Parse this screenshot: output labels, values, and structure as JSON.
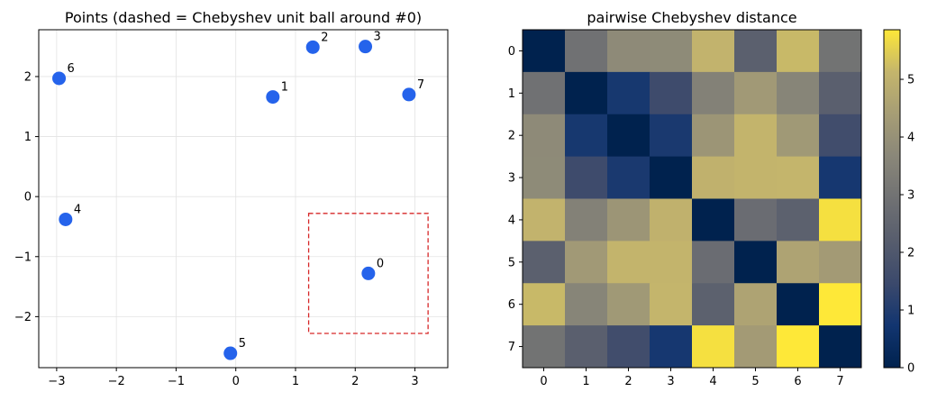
{
  "chart_data": [
    {
      "type": "scatter",
      "title": "Points (dashed = Chebyshev unit ball around #0)",
      "xlabel": "",
      "ylabel": "",
      "xlim": [
        -3.3,
        3.55
      ],
      "ylim": [
        -2.85,
        2.78
      ],
      "xticks": [
        -3,
        -2,
        -1,
        0,
        1,
        2,
        3
      ],
      "yticks": [
        -2,
        -1,
        0,
        1,
        2
      ],
      "x_tick_labels": [
        "−3",
        "−2",
        "−1",
        "0",
        "1",
        "2",
        "3"
      ],
      "y_tick_labels": [
        "−2",
        "−1",
        "0",
        "1",
        "2"
      ],
      "grid": true,
      "point_color": "#2563eb",
      "points": [
        {
          "label": "0",
          "x": 2.22,
          "y": -1.28
        },
        {
          "label": "1",
          "x": 0.62,
          "y": 1.66
        },
        {
          "label": "2",
          "x": 1.29,
          "y": 2.49
        },
        {
          "label": "3",
          "x": 2.17,
          "y": 2.5
        },
        {
          "label": "4",
          "x": -2.85,
          "y": -0.38
        },
        {
          "label": "5",
          "x": -0.09,
          "y": -2.61
        },
        {
          "label": "6",
          "x": -2.96,
          "y": 1.97
        },
        {
          "label": "7",
          "x": 2.9,
          "y": 1.7
        }
      ],
      "ball": {
        "center_index": 0,
        "radius": 1,
        "color": "#d62728",
        "style": "dashed"
      }
    },
    {
      "type": "heatmap",
      "title": "pairwise Chebyshev distance",
      "row_labels": [
        "0",
        "1",
        "2",
        "3",
        "4",
        "5",
        "6",
        "7"
      ],
      "col_labels": [
        "0",
        "1",
        "2",
        "3",
        "4",
        "5",
        "6",
        "7"
      ],
      "values": [
        [
          0.0,
          2.94,
          3.77,
          3.78,
          5.07,
          2.31,
          5.18,
          2.98
        ],
        [
          2.94,
          0.0,
          0.83,
          1.55,
          3.47,
          4.27,
          3.58,
          2.28
        ],
        [
          3.77,
          0.83,
          0.0,
          0.88,
          4.14,
          5.1,
          4.25,
          1.61
        ],
        [
          3.78,
          1.55,
          0.88,
          0.0,
          5.02,
          5.11,
          5.13,
          0.8
        ],
        [
          5.07,
          3.47,
          4.14,
          5.02,
          0.0,
          2.76,
          2.35,
          5.75
        ],
        [
          2.31,
          4.27,
          5.1,
          5.11,
          2.76,
          0.0,
          4.58,
          4.31
        ],
        [
          5.18,
          3.58,
          4.25,
          5.13,
          2.35,
          4.58,
          0.0,
          5.86
        ],
        [
          2.98,
          2.28,
          1.61,
          0.8,
          5.75,
          4.31,
          5.86,
          0.0
        ]
      ],
      "colormap": "cividis",
      "colorbar": {
        "range": [
          0,
          5.86
        ],
        "ticks": [
          0,
          1,
          2,
          3,
          4,
          5
        ],
        "tick_labels": [
          "0",
          "1",
          "2",
          "3",
          "4",
          "5"
        ]
      }
    }
  ]
}
